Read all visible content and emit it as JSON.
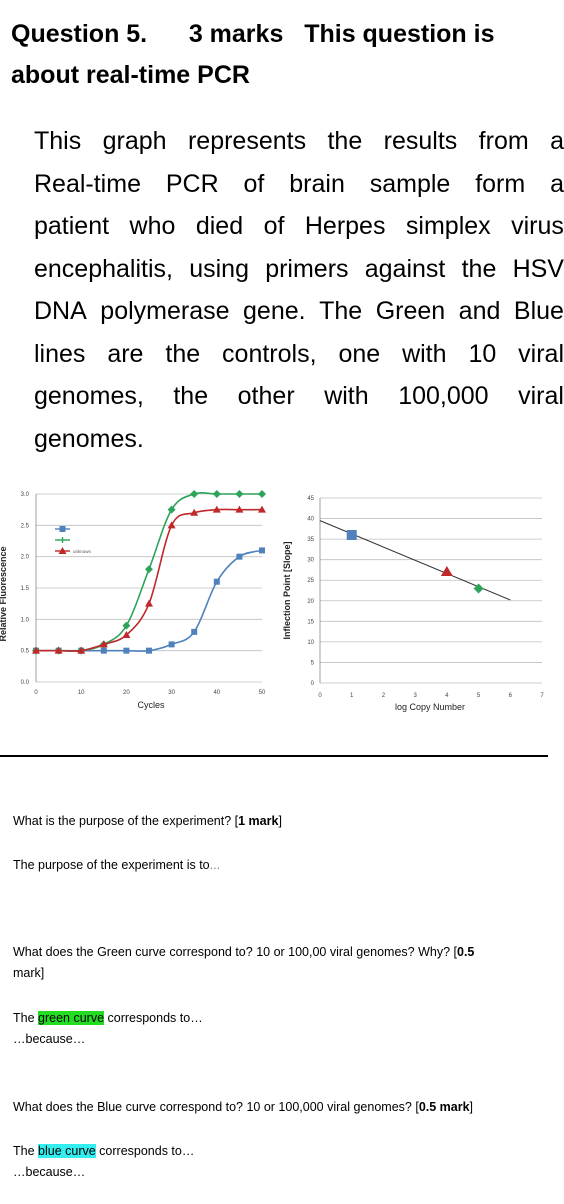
{
  "question": {
    "number": "Question 5.",
    "marks": "3 marks",
    "lead": "This question is",
    "topic": "about real-time PCR"
  },
  "intro_lines": [
    "This graph represents the results from a",
    "Real-time PCR of brain sample form a",
    "patient who died of Herpes simplex virus",
    "encephalitis, using primers against the HSV",
    "DNA polymerase gene. The Green and Blue",
    "lines are the controls, one with 10 viral",
    "genomes, the other with 100,000 viral",
    "genomes."
  ],
  "chart_data": [
    {
      "type": "line",
      "ylabel": "Relative Fluorescence",
      "xlabel": "Cycles",
      "xlim": [
        0,
        50
      ],
      "ylim": [
        0,
        3.0
      ],
      "xticks": [
        0,
        10,
        20,
        30,
        40,
        50
      ],
      "yticks": [
        0.0,
        0.5,
        1.0,
        1.5,
        2.0,
        2.5,
        3.0
      ],
      "ytick_labels": [
        "0.0",
        "0.5",
        "1.0",
        "1.5",
        "2.0",
        "2.5",
        "3.0"
      ],
      "grid": true,
      "legend": {
        "placement": "top-left",
        "entries": [
          "",
          "",
          "unknown"
        ]
      },
      "series": [
        {
          "color": "#4f81bd",
          "marker": "square",
          "x": [
            0,
            5,
            10,
            15,
            20,
            25,
            30,
            35,
            40,
            45,
            50
          ],
          "y": [
            0.5,
            0.5,
            0.5,
            0.5,
            0.5,
            0.5,
            0.6,
            0.8,
            1.6,
            2.0,
            2.1
          ]
        },
        {
          "color": "#2ea35a",
          "marker": "diamond",
          "x": [
            0,
            5,
            10,
            15,
            20,
            25,
            30,
            35,
            40,
            45,
            50
          ],
          "y": [
            0.5,
            0.5,
            0.5,
            0.6,
            0.9,
            1.8,
            2.75,
            3.0,
            3.0,
            3.0,
            3.0
          ]
        },
        {
          "name": "unknown",
          "color": "#c0282b",
          "marker": "triangle",
          "x": [
            0,
            5,
            10,
            15,
            20,
            25,
            30,
            35,
            40,
            45,
            50
          ],
          "y": [
            0.5,
            0.5,
            0.5,
            0.6,
            0.75,
            1.25,
            2.5,
            2.7,
            2.75,
            2.75,
            2.75
          ]
        }
      ]
    },
    {
      "type": "scatter",
      "ylabel": "Inflection Point [Slope]",
      "xlabel": "log Copy Number",
      "xlim": [
        0,
        7
      ],
      "ylim": [
        0,
        45
      ],
      "xticks": [
        0,
        1,
        2,
        3,
        4,
        5,
        6,
        7
      ],
      "yticks": [
        0,
        5,
        10,
        15,
        20,
        25,
        30,
        35,
        40,
        45
      ],
      "grid": true,
      "trendline": {
        "x": [
          0,
          6
        ],
        "y": [
          39.5,
          20.2
        ]
      },
      "points": [
        {
          "x": 1,
          "y": 36,
          "color": "#4f81bd",
          "marker": "square"
        },
        {
          "x": 4,
          "y": 27,
          "color": "#c0282b",
          "marker": "triangle"
        },
        {
          "x": 5,
          "y": 23,
          "color": "#2ea35a",
          "marker": "diamond"
        }
      ]
    }
  ],
  "q1": {
    "question": "What is the purpose of the experiment? [",
    "mark": "1 mark",
    "close": "]",
    "answer": "The purpose of the experiment is to",
    "answer_dots": "..."
  },
  "q2": {
    "question": "What does the Green curve correspond to? 10 or 100,00 viral genomes? Why? [",
    "mark": "0.5",
    "mark2": "mark",
    "close": "]",
    "answer_pre": "The ",
    "answer_hl": "green curve",
    "answer_post": " corresponds to…",
    "because": "…because…"
  },
  "q3": {
    "question": "What does the Blue curve correspond to? 10 or 100,000 viral genomes? [",
    "mark": "0.5 mark",
    "close": "]",
    "answer_pre": "The ",
    "answer_hl": "blue curve",
    "answer_post": " corresponds to…",
    "because": "…because…"
  },
  "colors": {
    "blue": "#4f81bd",
    "green": "#2ea35a",
    "red": "#c0282b",
    "highlight_green": "#22dd22",
    "highlight_blue": "#33eeee"
  }
}
